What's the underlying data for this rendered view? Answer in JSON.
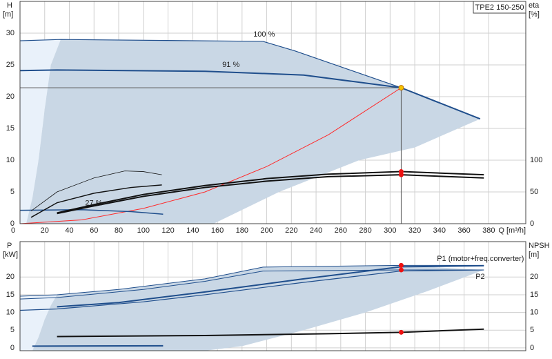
{
  "chart_data": [
    {
      "type": "line",
      "title": "TPE2 150-250",
      "ylabel": "H",
      "yunit": "[m]",
      "y2label": "eta",
      "y2unit": "[%]",
      "xlabel": "Q [m³/h]",
      "xlim": [
        0,
        410
      ],
      "xticks": [
        0,
        20,
        40,
        60,
        80,
        100,
        120,
        140,
        160,
        180,
        200,
        220,
        240,
        260,
        280,
        300,
        320,
        340,
        360,
        380
      ],
      "ylim": [
        0,
        35
      ],
      "yticks": [
        0,
        5,
        10,
        15,
        20,
        25,
        30
      ],
      "y2lim": [
        0,
        350
      ],
      "y2ticks": [
        0,
        50,
        100
      ],
      "grid": true,
      "series": [
        {
          "fill": "#e9f1fa",
          "color": "#e9f1fa",
          "x": [
            0,
            0,
            33,
            25,
            20,
            15,
            10,
            5
          ],
          "values": [
            0,
            29,
            29,
            25,
            18,
            10,
            4,
            0
          ]
        },
        {
          "fill": "#c9d7e5",
          "color": "#c9d7e5",
          "x": [
            5,
            10,
            15,
            20,
            25,
            33,
            197,
            223,
            309,
            373,
            320,
            275,
            210,
            157
          ],
          "values": [
            0,
            4,
            10,
            18,
            25,
            29,
            28.7,
            27.2,
            21.4,
            16.5,
            12,
            10,
            5,
            0
          ]
        },
        {
          "color": "#ff2a2a",
          "width": 1,
          "x": [
            0,
            50,
            100,
            150,
            200,
            250,
            309
          ],
          "values": [
            0,
            0.6,
            2.4,
            5,
            9,
            14,
            21.4
          ]
        },
        {
          "color": "#555555",
          "width": 1,
          "x": [
            0,
            309
          ],
          "values": [
            21.4,
            21.4
          ]
        },
        {
          "color": "#555555",
          "width": 1,
          "x": [
            309,
            309
          ],
          "values": [
            0,
            21.4
          ]
        },
        {
          "name": "100 %",
          "color": "#1f4e8c",
          "width": 1.2,
          "x": [
            0,
            33,
            197,
            223,
            309,
            373
          ],
          "values": [
            28.8,
            29,
            28.7,
            27.2,
            21.4,
            16.5
          ]
        },
        {
          "name": "91 %",
          "color": "#1f4e8c",
          "width": 2,
          "x": [
            0,
            30,
            150,
            230,
            309,
            373
          ],
          "values": [
            24.1,
            24.2,
            24,
            23.4,
            21.4,
            16.5
          ]
        },
        {
          "name": "27 %",
          "color": "#1f4e8c",
          "width": 1.5,
          "x": [
            0,
            50,
            90,
            116
          ],
          "values": [
            2.1,
            2.2,
            1.9,
            1.5
          ]
        },
        {
          "color": "#111111",
          "width": 2,
          "axis": "y2",
          "x": [
            30,
            60,
            100,
            150,
            200,
            250,
            309,
            376
          ],
          "values": [
            17,
            30,
            46,
            60,
            71,
            78,
            82,
            77
          ]
        },
        {
          "color": "#111111",
          "width": 2,
          "axis": "y2",
          "x": [
            30,
            60,
            100,
            150,
            200,
            250,
            309,
            376
          ],
          "values": [
            16,
            28,
            43,
            57,
            67,
            74,
            77,
            72
          ]
        },
        {
          "color": "#111111",
          "width": 0.8,
          "axis": "y2",
          "x": [
            9,
            30,
            60,
            85,
            100,
            115
          ],
          "values": [
            20,
            50,
            72,
            83,
            82,
            77
          ]
        },
        {
          "color": "#111111",
          "width": 1.5,
          "axis": "y2",
          "x": [
            9,
            30,
            60,
            90,
            115
          ],
          "values": [
            10,
            33,
            48,
            57,
            61
          ]
        }
      ],
      "markers": [
        {
          "x": 309,
          "y": 21.4,
          "color": "#f5c400"
        },
        {
          "x": 309,
          "y": 82,
          "axis": "y2",
          "color": "#ee1111"
        },
        {
          "x": 309,
          "y": 77,
          "axis": "y2",
          "color": "#ee1111"
        }
      ]
    },
    {
      "type": "line",
      "ylabel": "P",
      "yunit": "[kW]",
      "y2label": "NPSH",
      "y2unit": "[m]",
      "xlim": [
        0,
        410
      ],
      "ylim": [
        -0.8,
        30
      ],
      "yticks": [
        0,
        5,
        10,
        15,
        20
      ],
      "y2lim": [
        -0.8,
        30
      ],
      "y2ticks": [
        0,
        5,
        10,
        15,
        20
      ],
      "grid": true,
      "series": [
        {
          "fill": "#e9f1fa",
          "color": "#e9f1fa",
          "x": [
            0,
            0,
            30,
            25,
            20,
            15,
            10
          ],
          "values": [
            -0.8,
            14.6,
            15,
            12,
            8,
            3,
            -0.8
          ]
        },
        {
          "fill": "#c9d7e5",
          "color": "#c9d7e5",
          "x": [
            10,
            15,
            20,
            25,
            30,
            80,
            150,
            197,
            309,
            376,
            330,
            280,
            230,
            180,
            150
          ],
          "values": [
            -0.8,
            3,
            8,
            12,
            15,
            16.5,
            19.5,
            22.8,
            23.3,
            22,
            16,
            10,
            5,
            0.5,
            -0.8
          ]
        },
        {
          "color": "#1f4e8c",
          "width": 1,
          "x": [
            0,
            30,
            80,
            150,
            197,
            309,
            376
          ],
          "values": [
            14.6,
            15,
            16.5,
            19.5,
            22.8,
            23.3,
            23.3
          ]
        },
        {
          "color": "#1f4e8c",
          "width": 1,
          "x": [
            0,
            30,
            100,
            150,
            197,
            309,
            376
          ],
          "values": [
            13.8,
            14.2,
            16.5,
            18.8,
            21.7,
            22,
            22
          ]
        },
        {
          "name": "P1 (motor+freq.converter)",
          "color": "#1f4e8c",
          "width": 2,
          "x": [
            30,
            80,
            150,
            230,
            309,
            376
          ],
          "values": [
            11.6,
            12.8,
            15.8,
            19.5,
            22.9,
            23.2
          ]
        },
        {
          "name": "P2",
          "color": "#1f4e8c",
          "width": 1.2,
          "x": [
            0,
            30,
            100,
            150,
            230,
            309,
            376
          ],
          "values": [
            10.6,
            11,
            13,
            15,
            18.5,
            21.7,
            22
          ]
        },
        {
          "color": "#111111",
          "width": 2,
          "axis": "y2",
          "x": [
            30,
            150,
            250,
            309,
            376
          ],
          "values": [
            3.2,
            3.5,
            4,
            4.4,
            5.3
          ]
        },
        {
          "color": "#1f4e8c",
          "width": 2,
          "x": [
            10,
            116
          ],
          "values": [
            0.5,
            0.6
          ]
        }
      ],
      "markers": [
        {
          "x": 309,
          "y": 23.3,
          "color": "#ee1111"
        },
        {
          "x": 309,
          "y": 22,
          "color": "#ee1111"
        },
        {
          "x": 309,
          "y": 4.4,
          "axis": "y2",
          "color": "#ee1111"
        }
      ]
    }
  ]
}
